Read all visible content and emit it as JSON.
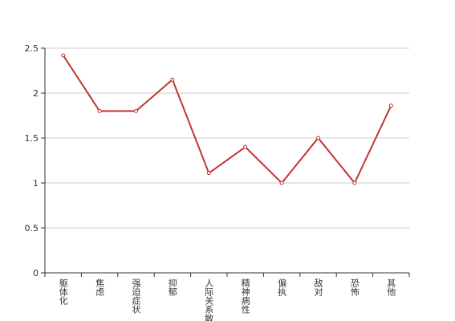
{
  "chart_data": {
    "type": "line",
    "categories": [
      "躯体化",
      "焦虑",
      "强迫症状",
      "抑郁",
      "人际关系敏感",
      "精神病性",
      "偏执",
      "敌对",
      "恐怖",
      "其他"
    ],
    "values": [
      2.42,
      1.8,
      1.8,
      2.15,
      1.11,
      1.4,
      1.0,
      1.5,
      1.0,
      1.86
    ],
    "color": "#c23531",
    "ylim": [
      0,
      2.5
    ],
    "yticks": [
      0,
      0.5,
      1,
      1.5,
      2,
      2.5
    ],
    "grid": true
  }
}
